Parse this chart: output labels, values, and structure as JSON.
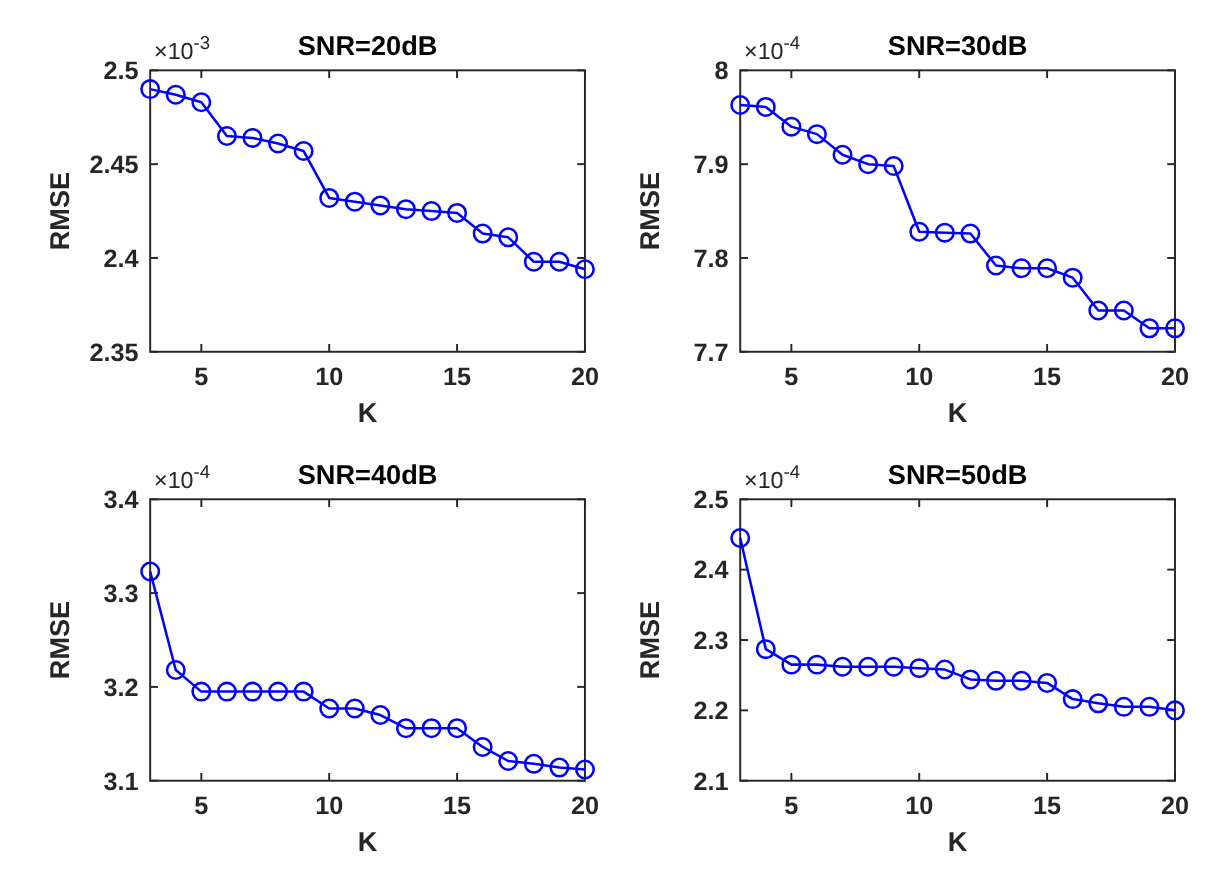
{
  "chart_data": [
    {
      "type": "line",
      "title": "SNR=20dB",
      "xlabel": "K",
      "ylabel": "RMSE",
      "annotations": [
        "×10$^{-3}$"
      ],
      "x": [
        3,
        4,
        5,
        6,
        7,
        8,
        9,
        10,
        11,
        12,
        13,
        14,
        15,
        16,
        17,
        18,
        19,
        20
      ],
      "xlim": [
        3,
        20
      ],
      "xticks": [
        5,
        10,
        15,
        20
      ],
      "ylim": [
        2.35,
        2.5
      ],
      "yticks": [
        2.35,
        2.4,
        2.45,
        2.5
      ],
      "grid": false,
      "marker": "circle",
      "line_style": "solid",
      "series": [
        {
          "color": "#0000ff",
          "values": [
            2.49,
            2.487,
            2.483,
            2.465,
            2.464,
            2.461,
            2.457,
            2.432,
            2.43,
            2.428,
            2.426,
            2.425,
            2.424,
            2.413,
            2.411,
            2.398,
            2.398,
            2.394
          ]
        }
      ]
    },
    {
      "type": "line",
      "title": "SNR=30dB",
      "xlabel": "K",
      "ylabel": "RMSE",
      "annotations": [
        "×10$^{-4}$"
      ],
      "x": [
        3,
        4,
        5,
        6,
        7,
        8,
        9,
        10,
        11,
        12,
        13,
        14,
        15,
        16,
        17,
        18,
        19,
        20
      ],
      "xlim": [
        3,
        20
      ],
      "xticks": [
        5,
        10,
        15,
        20
      ],
      "ylim": [
        7.7,
        8
      ],
      "yticks": [
        7.7,
        7.8,
        7.9,
        8
      ],
      "grid": false,
      "marker": "circle",
      "line_style": "solid",
      "series": [
        {
          "color": "#0000ff",
          "values": [
            7.963,
            7.961,
            7.94,
            7.932,
            7.91,
            7.9,
            7.898,
            7.828,
            7.827,
            7.826,
            7.792,
            7.789,
            7.789,
            7.779,
            7.744,
            7.744,
            7.725,
            7.725
          ]
        }
      ]
    },
    {
      "type": "line",
      "title": "SNR=40dB",
      "xlabel": "K",
      "ylabel": "RMSE",
      "annotations": [
        "×10$^{-4}$"
      ],
      "x": [
        3,
        4,
        5,
        6,
        7,
        8,
        9,
        10,
        11,
        12,
        13,
        14,
        15,
        16,
        17,
        18,
        19,
        20
      ],
      "xlim": [
        3,
        20
      ],
      "xticks": [
        5,
        10,
        15,
        20
      ],
      "ylim": [
        3.1,
        3.4
      ],
      "yticks": [
        3.1,
        3.2,
        3.3,
        3.4
      ],
      "grid": false,
      "marker": "circle",
      "line_style": "solid",
      "series": [
        {
          "color": "#0000ff",
          "values": [
            3.323,
            3.218,
            3.195,
            3.195,
            3.195,
            3.195,
            3.195,
            3.177,
            3.177,
            3.17,
            3.156,
            3.156,
            3.156,
            3.136,
            3.121,
            3.118,
            3.114,
            3.112
          ]
        }
      ]
    },
    {
      "type": "line",
      "title": "SNR=50dB",
      "xlabel": "K",
      "ylabel": "RMSE",
      "annotations": [
        "×10$^{-4}$"
      ],
      "x": [
        3,
        4,
        5,
        6,
        7,
        8,
        9,
        10,
        11,
        12,
        13,
        14,
        15,
        16,
        17,
        18,
        19,
        20
      ],
      "xlim": [
        3,
        20
      ],
      "xticks": [
        5,
        10,
        15,
        20
      ],
      "ylim": [
        2.1,
        2.5
      ],
      "yticks": [
        2.1,
        2.2,
        2.3,
        2.4,
        2.5
      ],
      "grid": false,
      "marker": "circle",
      "line_style": "solid",
      "series": [
        {
          "color": "#0000ff",
          "values": [
            2.445,
            2.287,
            2.265,
            2.265,
            2.262,
            2.262,
            2.262,
            2.26,
            2.258,
            2.244,
            2.242,
            2.242,
            2.239,
            2.216,
            2.21,
            2.205,
            2.205,
            2.2
          ]
        }
      ]
    }
  ]
}
